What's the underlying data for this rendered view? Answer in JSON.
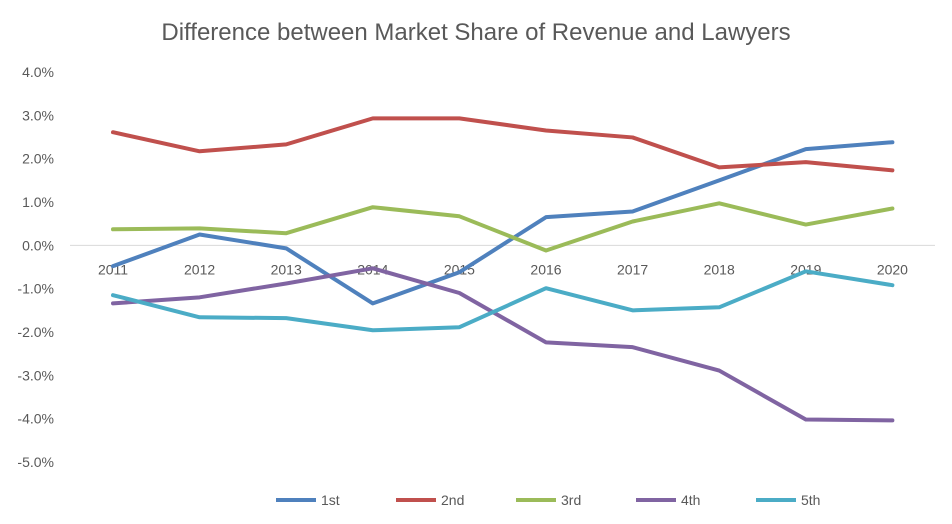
{
  "chart_data": {
    "type": "line",
    "title": "Difference between Market Share of Revenue and Lawyers",
    "xlabel": "",
    "ylabel": "",
    "categories": [
      "2011",
      "2012",
      "2013",
      "2014",
      "2015",
      "2016",
      "2017",
      "2018",
      "2019",
      "2020"
    ],
    "ylim": [
      -5,
      4
    ],
    "yticks": [
      4,
      3,
      2,
      1,
      0,
      -1,
      -2,
      -3,
      -4,
      -5
    ],
    "ytick_labels": [
      "4.0%",
      "3.0%",
      "2.0%",
      "1.0%",
      "0.0%",
      "-1.0%",
      "-2.0%",
      "-3.0%",
      "-4.0%",
      "-5.0%"
    ],
    "grid": false,
    "legend_position": "bottom",
    "series": [
      {
        "name": "1st",
        "color": "#4F81BD",
        "values": [
          -0.48,
          0.25,
          -0.07,
          -1.34,
          -0.62,
          0.65,
          0.78,
          1.5,
          2.22,
          2.38
        ]
      },
      {
        "name": "2nd",
        "color": "#C0504D",
        "values": [
          2.61,
          2.17,
          2.33,
          2.93,
          2.93,
          2.65,
          2.49,
          1.8,
          1.92,
          1.73
        ]
      },
      {
        "name": "3rd",
        "color": "#9BBB59",
        "values": [
          0.37,
          0.39,
          0.28,
          0.88,
          0.67,
          -0.12,
          0.55,
          0.97,
          0.48,
          0.85
        ]
      },
      {
        "name": "4th",
        "color": "#8064A2",
        "values": [
          -1.34,
          -1.2,
          -0.88,
          -0.53,
          -1.1,
          -2.24,
          -2.35,
          -2.89,
          -4.02,
          -4.04
        ]
      },
      {
        "name": "5th",
        "color": "#4BACC6",
        "values": [
          -1.15,
          -1.66,
          -1.68,
          -1.96,
          -1.89,
          -0.99,
          -1.5,
          -1.43,
          -0.6,
          -0.92
        ]
      }
    ]
  }
}
